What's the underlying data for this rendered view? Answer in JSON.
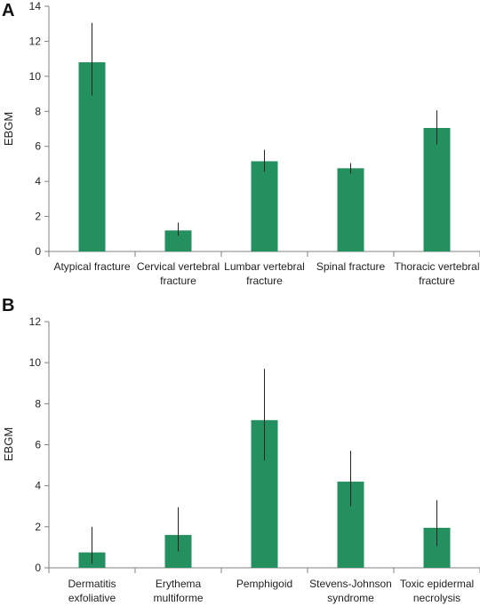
{
  "colors": {
    "bar": "#24905f",
    "axis": "#808080",
    "error": "#222222"
  },
  "chart_data": [
    {
      "panel": "A",
      "type": "bar",
      "ylabel": "EBGM",
      "ylim": [
        0,
        14
      ],
      "yticks": [
        0,
        2,
        4,
        6,
        8,
        10,
        12,
        14
      ],
      "categories": [
        [
          "Atypical fracture"
        ],
        [
          "Cervical vertebral",
          "fracture"
        ],
        [
          "Lumbar vertebral",
          "fracture"
        ],
        [
          "Spinal fracture"
        ],
        [
          "Thoracic vertebral",
          "fracture"
        ]
      ],
      "values": [
        10.8,
        1.2,
        5.15,
        4.75,
        7.05
      ],
      "error_low": [
        8.9,
        0.9,
        4.55,
        4.45,
        6.1
      ],
      "error_high": [
        13.05,
        1.65,
        5.8,
        5.05,
        8.05
      ]
    },
    {
      "panel": "B",
      "type": "bar",
      "ylabel": "EBGM",
      "ylim": [
        0,
        12
      ],
      "yticks": [
        0,
        2,
        4,
        6,
        8,
        10,
        12
      ],
      "categories": [
        [
          "Dermatitis",
          "exfoliative"
        ],
        [
          "Erythema",
          "multiforme"
        ],
        [
          "Pemphigoid"
        ],
        [
          "Stevens-Johnson",
          "syndrome"
        ],
        [
          "Toxic epidermal",
          "necrolysis"
        ]
      ],
      "values": [
        0.75,
        1.6,
        7.2,
        4.2,
        1.95
      ],
      "error_low": [
        0.2,
        0.8,
        5.25,
        3.0,
        1.05
      ],
      "error_high": [
        2.0,
        2.95,
        9.7,
        5.7,
        3.3
      ]
    }
  ]
}
